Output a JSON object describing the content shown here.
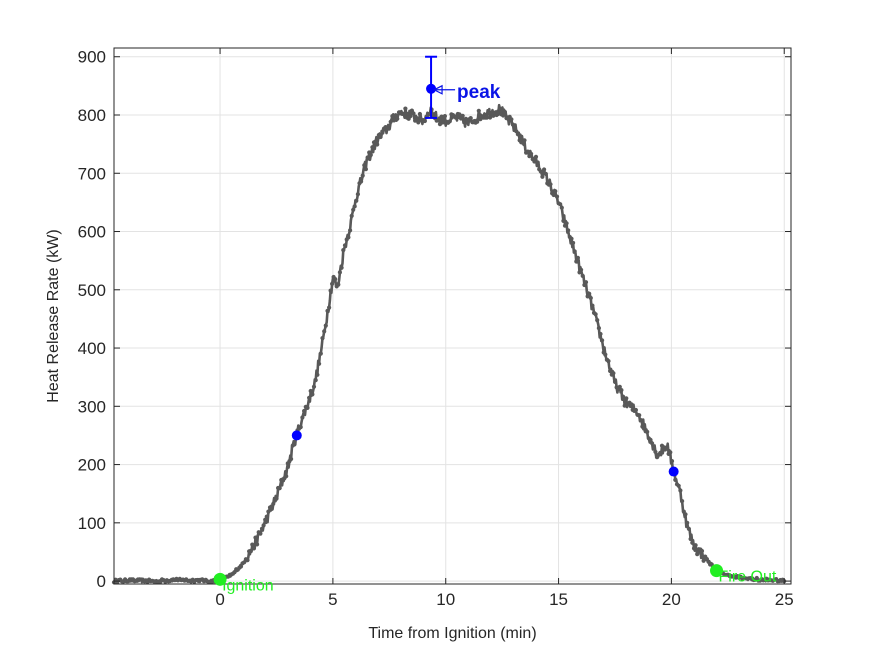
{
  "chart_data": {
    "type": "line",
    "title": "",
    "xlabel": "Time from Ignition (min)",
    "ylabel": "Heat Release Rate (kW)",
    "xlim": [
      -4.7,
      25.3
    ],
    "ylim": [
      -5,
      915
    ],
    "x_ticks": [
      0,
      5,
      10,
      15,
      20,
      25
    ],
    "y_ticks": [
      0,
      100,
      200,
      300,
      400,
      500,
      600,
      700,
      800,
      900
    ],
    "grid": true,
    "series": [
      {
        "name": "",
        "color": "#595959",
        "marker": "dot",
        "x": [
          -4.7,
          -4.0,
          -3.0,
          -2.0,
          -1.0,
          0.0,
          0.5,
          1.0,
          1.5,
          2.0,
          2.5,
          3.0,
          3.3,
          3.5,
          3.8,
          4.2,
          4.5,
          4.8,
          5.0,
          5.2,
          5.5,
          5.8,
          6.0,
          6.5,
          7.0,
          7.3,
          7.6,
          8.0,
          8.5,
          9.0,
          9.3,
          9.6,
          10.0,
          10.5,
          11.0,
          11.5,
          12.0,
          12.4,
          12.8,
          13.2,
          13.6,
          14.0,
          14.5,
          15.0,
          15.5,
          16.0,
          16.5,
          17.0,
          17.5,
          18.0,
          18.5,
          19.0,
          19.4,
          19.8,
          20.1,
          20.4,
          20.7,
          21.0,
          21.5,
          22.0,
          22.5,
          23.0,
          23.5,
          24.0,
          24.5,
          25.0
        ],
        "y": [
          0,
          1,
          0,
          2,
          1,
          0,
          10,
          30,
          60,
          100,
          145,
          195,
          240,
          265,
          295,
          340,
          400,
          470,
          520,
          505,
          570,
          615,
          655,
          720,
          760,
          770,
          790,
          805,
          800,
          790,
          810,
          795,
          790,
          795,
          785,
          800,
          805,
          810,
          790,
          770,
          740,
          720,
          690,
          650,
          590,
          530,
          470,
          400,
          340,
          305,
          290,
          250,
          215,
          235,
          190,
          150,
          95,
          60,
          40,
          18,
          10,
          6,
          4,
          2,
          2,
          0
        ]
      }
    ],
    "key_points": [
      {
        "x": 3.4,
        "y": 250,
        "color": "#0000ff"
      },
      {
        "x": 9.35,
        "y": 845,
        "color": "#0000ff"
      },
      {
        "x": 20.1,
        "y": 188,
        "color": "#0000ff"
      }
    ],
    "error_bar": {
      "x": 9.35,
      "y": 845,
      "low": 795,
      "high": 900,
      "color": "#0000ff"
    },
    "annotations": [
      {
        "text": "Ignition",
        "x": 0,
        "y": 3,
        "color": "#22ee22"
      },
      {
        "text": "Fire Out",
        "x": 22.0,
        "y": 18,
        "color": "#22ee22"
      },
      {
        "text": "peak",
        "x": 9.35,
        "y": 845,
        "color": "#0000ff"
      }
    ]
  }
}
